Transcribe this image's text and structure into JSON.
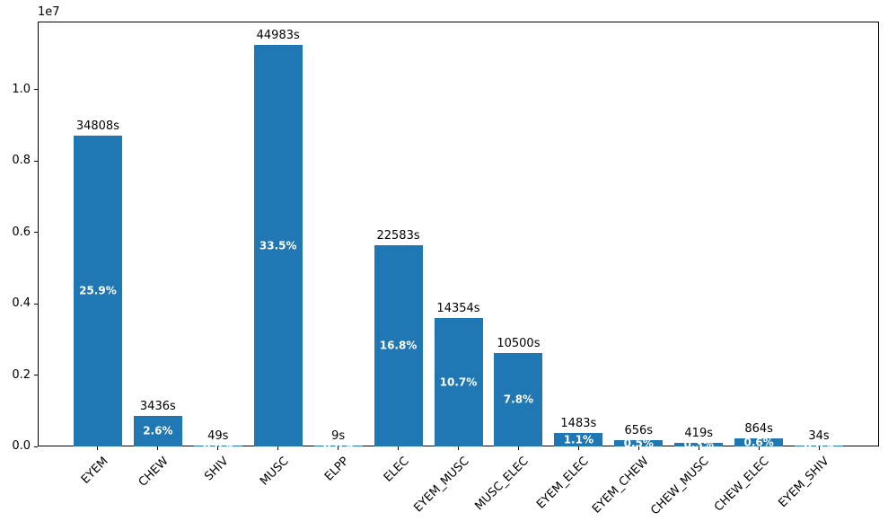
{
  "chart_data": {
    "type": "bar",
    "title": "",
    "xlabel": "",
    "ylabel": "",
    "offset_label": "1e7",
    "grid": false,
    "legend_position": "none",
    "bar_color": "#1f77b4",
    "value_label_color": "#000000",
    "pct_label_color": "#ffffff",
    "axis_color": "#000000",
    "ylim": [
      0,
      11900000
    ],
    "yticks": [
      {
        "value": 0,
        "label": "0.0"
      },
      {
        "value": 2000000,
        "label": "0.2"
      },
      {
        "value": 4000000,
        "label": "0.4"
      },
      {
        "value": 6000000,
        "label": "0.6"
      },
      {
        "value": 8000000,
        "label": "0.8"
      },
      {
        "value": 10000000,
        "label": "1.0"
      }
    ],
    "categories": [
      "EYEM",
      "CHEW",
      "SHIV",
      "MUSC",
      "ELPP",
      "ELEC",
      "EYEM_MUSC",
      "MUSC_ELEC",
      "EYEM_ELEC",
      "EYEM_CHEW",
      "CHEW_MUSC",
      "CHEW_ELEC",
      "EYEM_SHIV"
    ],
    "bars": [
      {
        "category": "EYEM",
        "duration_label": "34808s",
        "seconds": 34808,
        "pct_label": "25.9%",
        "value": 8702000
      },
      {
        "category": "CHEW",
        "duration_label": "3436s",
        "seconds": 3436,
        "pct_label": "2.6%",
        "value": 859000
      },
      {
        "category": "SHIV",
        "duration_label": "49s",
        "seconds": 49,
        "pct_label": "0.0%",
        "value": 12250
      },
      {
        "category": "MUSC",
        "duration_label": "44983s",
        "seconds": 44983,
        "pct_label": "33.5%",
        "value": 11245750
      },
      {
        "category": "ELPP",
        "duration_label": "9s",
        "seconds": 9,
        "pct_label": "0.0%",
        "value": 2250
      },
      {
        "category": "ELEC",
        "duration_label": "22583s",
        "seconds": 22583,
        "pct_label": "16.8%",
        "value": 5645750
      },
      {
        "category": "EYEM_MUSC",
        "duration_label": "14354s",
        "seconds": 14354,
        "pct_label": "10.7%",
        "value": 3588500
      },
      {
        "category": "MUSC_ELEC",
        "duration_label": "10500s",
        "seconds": 10500,
        "pct_label": "7.8%",
        "value": 2625000
      },
      {
        "category": "EYEM_ELEC",
        "duration_label": "1483s",
        "seconds": 1483,
        "pct_label": "1.1%",
        "value": 370750
      },
      {
        "category": "EYEM_CHEW",
        "duration_label": "656s",
        "seconds": 656,
        "pct_label": "0.5%",
        "value": 164000
      },
      {
        "category": "CHEW_MUSC",
        "duration_label": "419s",
        "seconds": 419,
        "pct_label": "0.3%",
        "value": 104750
      },
      {
        "category": "CHEW_ELEC",
        "duration_label": "864s",
        "seconds": 864,
        "pct_label": "0.6%",
        "value": 216000
      },
      {
        "category": "EYEM_SHIV",
        "duration_label": "34s",
        "seconds": 34,
        "pct_label": "0.0%",
        "value": 8500
      }
    ]
  }
}
